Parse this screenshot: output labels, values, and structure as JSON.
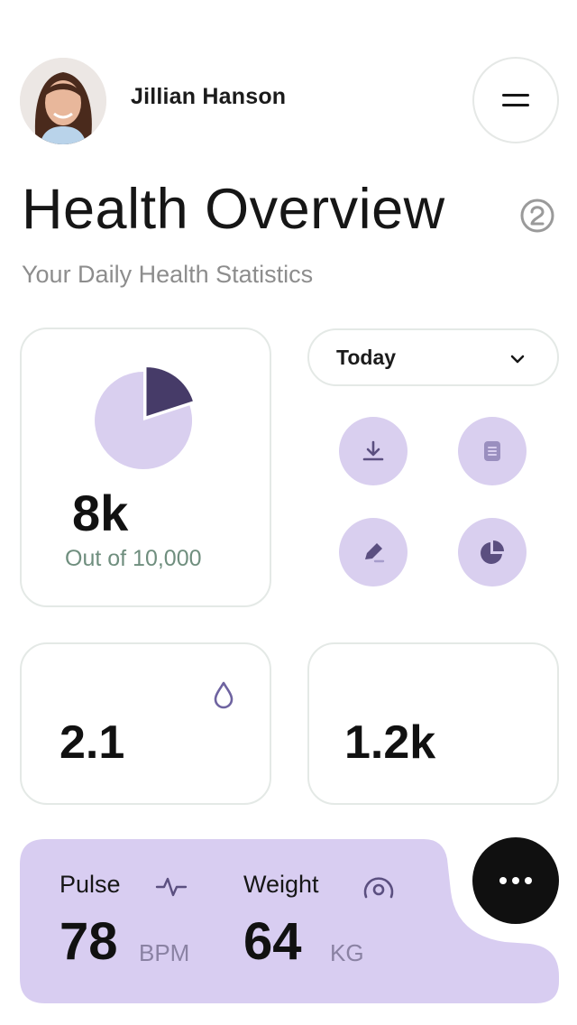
{
  "header": {
    "user_name": "Jillian Hanson"
  },
  "title": {
    "text": "Health Overview",
    "subtitle": "Your Daily Health Statistics"
  },
  "steps": {
    "value": "8k",
    "caption": "Out of 10,000",
    "progress_fraction": 0.8
  },
  "period": {
    "selected": "Today"
  },
  "actions": {
    "icons": [
      "download-icon",
      "document-icon",
      "edit-icon",
      "pie-chart-icon"
    ]
  },
  "stats": {
    "water_value": "2.1",
    "second_value": "1.2k"
  },
  "vitals": {
    "pulse_label": "Pulse",
    "pulse_value": "78",
    "pulse_unit": "BPM",
    "weight_label": "Weight",
    "weight_value": "64",
    "weight_unit": "KG"
  },
  "colors": {
    "accent_light": "#d9cfef",
    "accent_dark": "#463b68",
    "panel": "#d8cdf1",
    "caption_green": "#6f8e7e"
  }
}
